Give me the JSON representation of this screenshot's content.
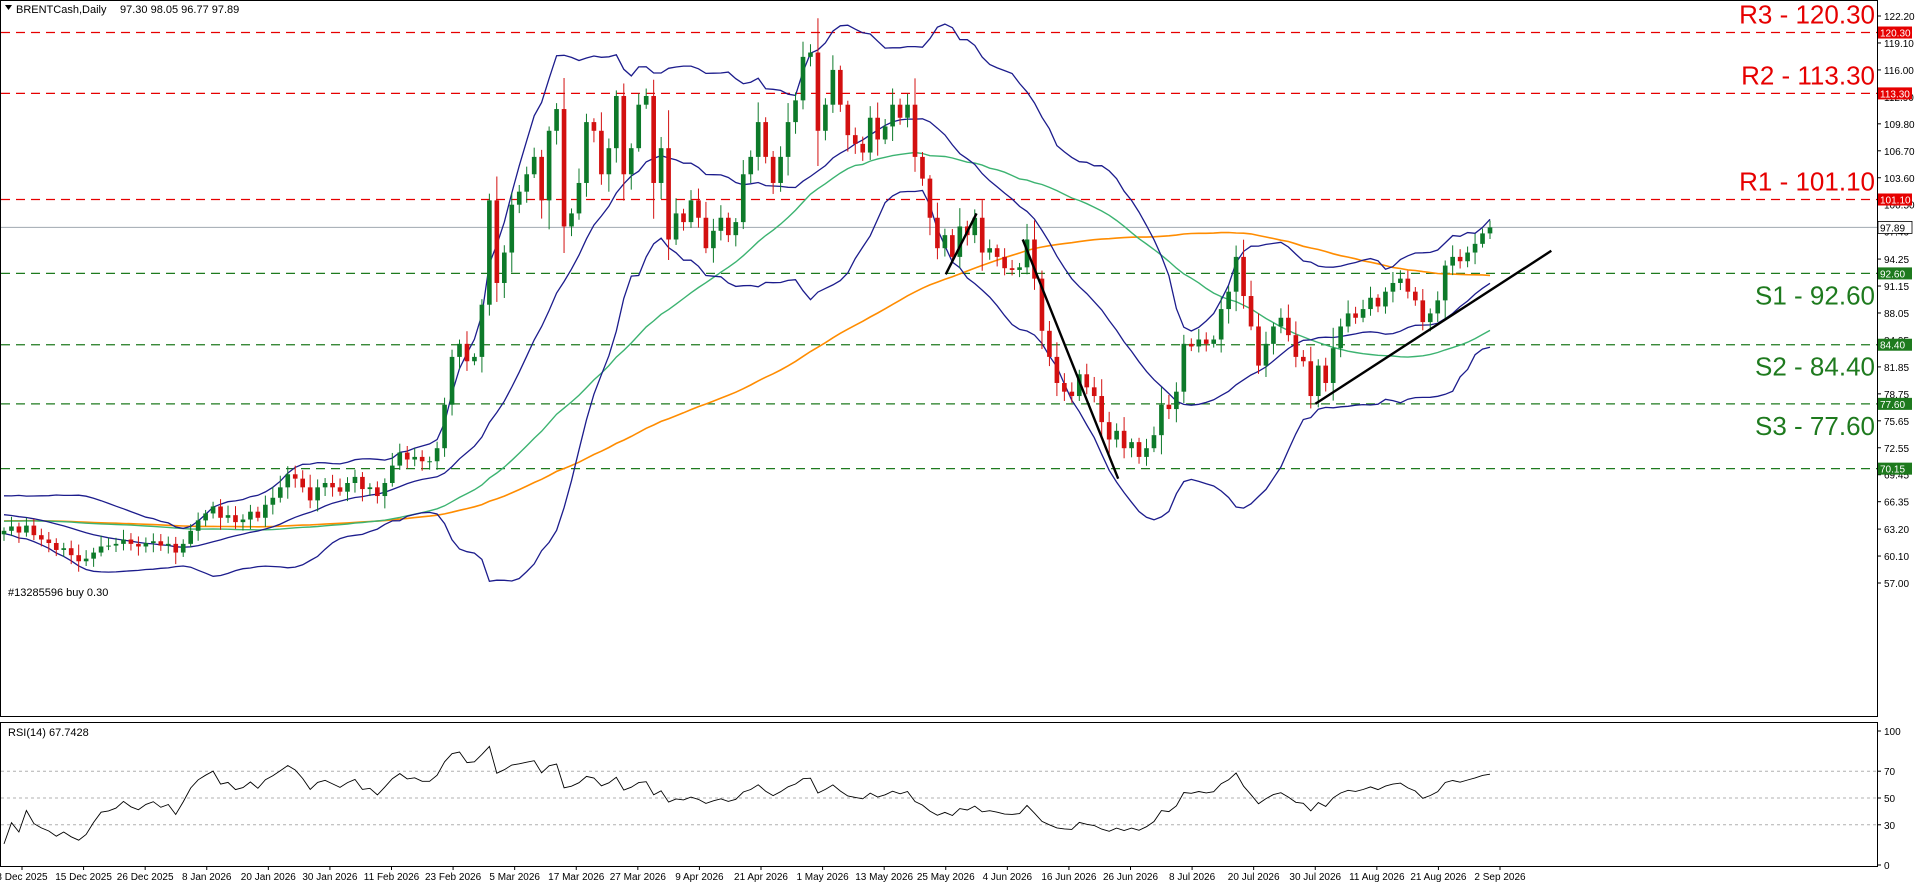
{
  "header": {
    "symbol_label": "BRENTCash,Daily",
    "ohlc_label": "97.30 98.05 96.77 97.89"
  },
  "trade_note": "#13285596 buy 0.30",
  "colors": {
    "up_candle": "#0d7a2a",
    "down_candle": "#d31010",
    "bollinger": "#1c1c8c",
    "ma_green": "#3cb371",
    "ma_orange": "#ff8c00",
    "level_red": "#e60000",
    "level_green": "#1e7a1e",
    "trendline": "#000000",
    "current_price_line": "#a0a8b0"
  },
  "chart_data": [
    {
      "type": "candlestick",
      "title": "BRENTCash,Daily",
      "ylim": [
        57.0,
        122.2
      ],
      "y_ticks": [
        "122.20",
        "119.10",
        "116.00",
        "112.90",
        "109.80",
        "106.70",
        "103.60",
        "100.50",
        "97.40",
        "94.25",
        "91.15",
        "88.05",
        "84.95",
        "81.85",
        "78.75",
        "75.65",
        "72.55",
        "69.45",
        "66.35",
        "63.20",
        "60.10",
        "57.00"
      ],
      "x_ticks": [
        "3 Dec 2025",
        "15 Dec 2025",
        "26 Dec 2025",
        "8 Jan 2026",
        "20 Jan 2026",
        "30 Jan 2026",
        "11 Feb 2026",
        "23 Feb 2026",
        "5 Mar 2026",
        "17 Mar 2026",
        "27 Mar 2026",
        "9 Apr 2026",
        "21 Apr 2026",
        "1 May 2026",
        "13 May 2026",
        "25 May 2026",
        "4 Jun 2026",
        "16 Jun 2026",
        "26 Jun 2026",
        "8 Jul 2026",
        "20 Jul 2026",
        "30 Jul 2026",
        "11 Aug 2026",
        "21 Aug 2026",
        "2 Sep 2026"
      ],
      "close_series": [
        63,
        63.5,
        62.8,
        63.6,
        62.5,
        62,
        61.6,
        60.8,
        61,
        60.2,
        59.5,
        59.8,
        60.5,
        61.2,
        61.3,
        61.5,
        62,
        61.5,
        61.2,
        61.6,
        61.8,
        61.3,
        61.5,
        60.5,
        61.5,
        63,
        64.2,
        65,
        65.8,
        64.5,
        64.8,
        64,
        64.3,
        65.2,
        64.5,
        66,
        66.8,
        68,
        69.5,
        69,
        68,
        66.5,
        68,
        68.5,
        68,
        67.5,
        68.5,
        69.2,
        67.8,
        68,
        67,
        68.5,
        70.5,
        72,
        71.2,
        71.5,
        71,
        71,
        72.5,
        77.5,
        83,
        84.5,
        82.5,
        83,
        89,
        101,
        91.5,
        95,
        100.5,
        102,
        104,
        106,
        101,
        109,
        111.5,
        98,
        99.5,
        103,
        110,
        109,
        104,
        107,
        113,
        104,
        107,
        112,
        113,
        103,
        107,
        96.5,
        99.5,
        98.5,
        101,
        99,
        95.5,
        97.5,
        99,
        97,
        98.5,
        104,
        106,
        110,
        106,
        103,
        106,
        110,
        112.5,
        117.5,
        118,
        109,
        112,
        116,
        112,
        108.5,
        107.5,
        106.5,
        110.5,
        108,
        109.5,
        112,
        110.5,
        112,
        106,
        103.5,
        99,
        95.5,
        97,
        94.5,
        98,
        97,
        99,
        95,
        95.5,
        94.5,
        93.2,
        93,
        93.3,
        96.5,
        92,
        86,
        83,
        80,
        79,
        78.5,
        81,
        79.5,
        78.5,
        75.5,
        73.5,
        74.5,
        72.5,
        73.2,
        71.5,
        72.5,
        74,
        77.5,
        77,
        79,
        84.5,
        84.2,
        85,
        84.5,
        85,
        88.5,
        90.5,
        94.5,
        90,
        86.5,
        82,
        84.5,
        86.5,
        87.5,
        85.5,
        83,
        82.5,
        78.5,
        82,
        80,
        84,
        86.5,
        88,
        87.5,
        88.5,
        89.8,
        88.8,
        90.5,
        91.5,
        92,
        90.5,
        89.5,
        87,
        88,
        89.5,
        93.5,
        94.5,
        94,
        95,
        96,
        97.2,
        97.89
      ],
      "last_price": 97.89,
      "bollinger_bands": {
        "period": 20
      },
      "moving_averages": [
        {
          "name": "MA (green)",
          "color": "#3cb371"
        },
        {
          "name": "MA (orange)",
          "color": "#ff8c00"
        }
      ],
      "horizontal_levels": [
        {
          "name": "R3",
          "label": "R3 - 120.30",
          "price": 120.3,
          "tag": "120.30",
          "color": "#e60000"
        },
        {
          "name": "R2",
          "label": "R2 - 113.30",
          "price": 113.3,
          "tag": "113.30",
          "color": "#e60000"
        },
        {
          "name": "R1",
          "label": "R1 - 101.10",
          "price": 101.1,
          "tag": "101.10",
          "color": "#e60000"
        },
        {
          "name": "S1",
          "label": "S1 - 92.60",
          "price": 92.6,
          "tag": "92.60",
          "color": "#1e7a1e"
        },
        {
          "name": "S2",
          "label": "S2 - 84.40",
          "price": 84.4,
          "tag": "84.40",
          "color": "#1e7a1e"
        },
        {
          "name": "S3",
          "label": "S3 - 77.60",
          "price": 77.6,
          "tag": "77.60",
          "color": "#1e7a1e"
        },
        {
          "name": "70.15",
          "label": "",
          "price": 70.15,
          "tag": "70.15",
          "color": "#1e7a1e"
        }
      ],
      "trendlines": [
        {
          "name": "rally-leg",
          "from": {
            "x": "25 May 2026",
            "y": 92.5
          },
          "to": {
            "x": "30 May 2026",
            "y": 99.5
          }
        },
        {
          "name": "decline-leg",
          "from": {
            "x": "7 Jun 2026",
            "y": 96.5
          },
          "to": {
            "x": "24 Jun 2026",
            "y": 69.0
          }
        },
        {
          "name": "uptrend-line",
          "from": {
            "x": "30 Jul 2026",
            "y": 77.6
          },
          "to": {
            "x": "12 Sep 2026",
            "y": 95.2
          }
        }
      ]
    },
    {
      "type": "line",
      "title": "RSI(14) 67.7428",
      "name": "RSI(14)",
      "value_label": "67.7428",
      "ylim": [
        0,
        100
      ],
      "y_ticks": [
        "100",
        "70",
        "50",
        "30",
        "0"
      ],
      "levels": [
        70,
        50,
        30
      ]
    }
  ]
}
